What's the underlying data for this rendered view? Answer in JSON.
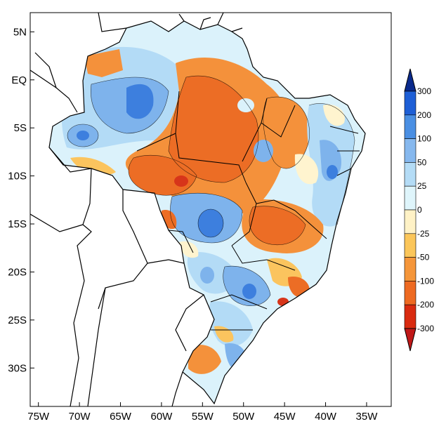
{
  "map": {
    "x_ticks": [
      "75W",
      "70W",
      "65W",
      "60W",
      "55W",
      "50W",
      "45W",
      "40W",
      "35W"
    ],
    "y_ticks": [
      "5N",
      "EQ",
      "5S",
      "10S",
      "15S",
      "20S",
      "25S",
      "30S"
    ],
    "lon_range": [
      -76,
      -32
    ],
    "lat_range": [
      -34,
      7
    ]
  },
  "colorbar": {
    "labels": [
      "300",
      "200",
      "100",
      "50",
      "25",
      "0",
      "-25",
      "-50",
      "-100",
      "-200",
      "-300"
    ],
    "colors": [
      "#0a2a8c",
      "#1e5fd6",
      "#4a8fe3",
      "#86b8ee",
      "#b4dcf6",
      "#dff5fb",
      "#fff2c6",
      "#fbc65a",
      "#f5963a",
      "#ee6a22",
      "#d92b10",
      "#c01818"
    ]
  },
  "palette": {
    "deep_blue": "#3d7fde",
    "mid_blue": "#7eb3ec",
    "light_blue": "#b3dbf6",
    "pale_blue": "#dbf2fb",
    "cream": "#fff4cf",
    "yellow_orange": "#fbc45e",
    "orange": "#f4913b",
    "dark_orange": "#ec6d25",
    "red": "#d7351a"
  }
}
